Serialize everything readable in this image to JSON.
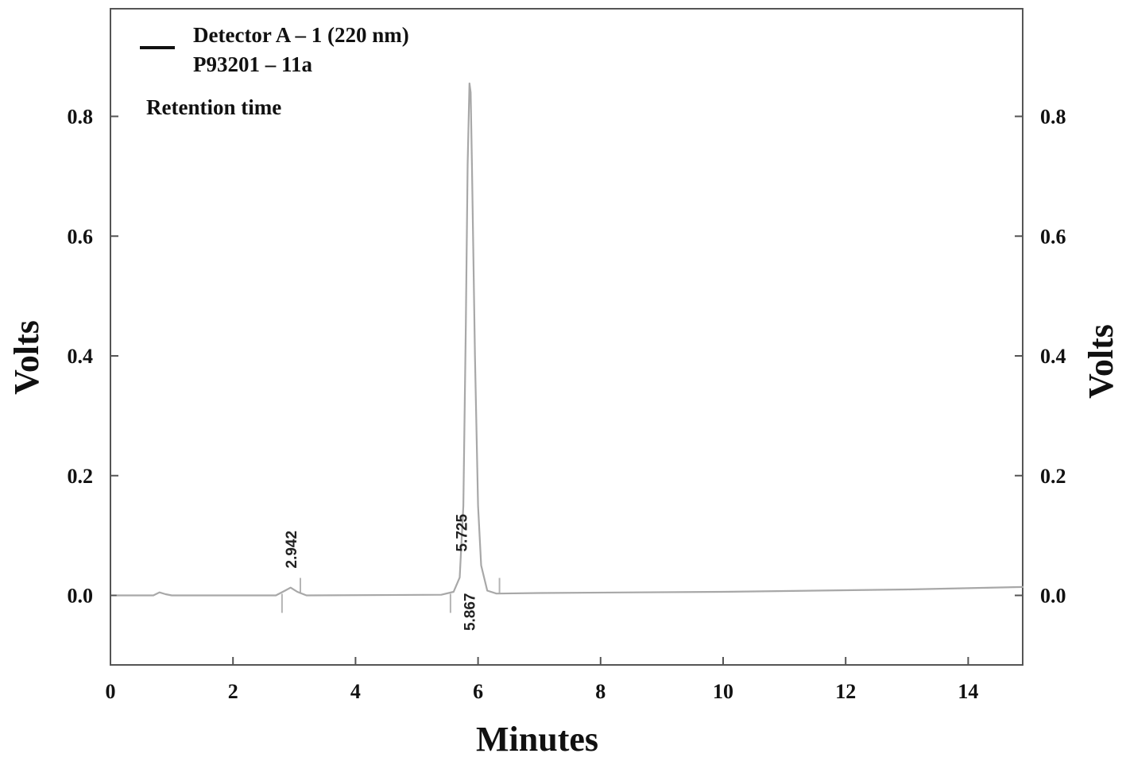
{
  "chart_data": {
    "type": "line",
    "xlabel": "Minutes",
    "ylabel_left": "Volts",
    "ylabel_right": "Volts",
    "xlim": [
      0,
      15
    ],
    "ylim": [
      -0.12,
      0.98
    ],
    "x_ticks": [
      0,
      2,
      4,
      6,
      8,
      10,
      12,
      14
    ],
    "x_tick_labels": [
      "0",
      "2",
      "4",
      "6",
      "8",
      "10",
      "12",
      "14"
    ],
    "y_ticks": [
      0.0,
      0.2,
      0.4,
      0.6,
      0.8
    ],
    "y_tick_labels": [
      "0.0",
      "0.2",
      "0.4",
      "0.6",
      "0.8"
    ],
    "grid": false,
    "legend": {
      "placement": "top-left",
      "entries": [
        "Detector A – 1 (220 nm)",
        "P93201 – 11a"
      ],
      "note": "Retention time"
    },
    "series": [
      {
        "name": "Detector A – 1 (220 nm)",
        "color": "#a8a8a8",
        "x": [
          0.1,
          0.7,
          0.8,
          0.9,
          1.0,
          2.7,
          2.85,
          2.94,
          3.05,
          3.2,
          5.4,
          5.6,
          5.7,
          5.76,
          5.8,
          5.83,
          5.86,
          5.88,
          5.9,
          5.95,
          6.0,
          6.05,
          6.15,
          6.3,
          7.0,
          10.0,
          13.0,
          14.9
        ],
        "y": [
          0.0,
          0.0,
          0.005,
          0.002,
          0.0,
          0.0,
          0.008,
          0.013,
          0.006,
          0.0,
          0.001,
          0.006,
          0.03,
          0.15,
          0.45,
          0.72,
          0.855,
          0.84,
          0.72,
          0.4,
          0.15,
          0.05,
          0.008,
          0.003,
          0.004,
          0.006,
          0.01,
          0.014
        ]
      }
    ],
    "peak_labels": [
      {
        "x": 2.942,
        "text": "2.942",
        "position": "above"
      },
      {
        "x": 5.725,
        "text": "5.725",
        "position": "above"
      },
      {
        "x": 5.867,
        "text": "5.867",
        "position": "below"
      }
    ],
    "integration_markers": [
      2.8,
      3.1,
      5.55,
      6.35
    ]
  }
}
